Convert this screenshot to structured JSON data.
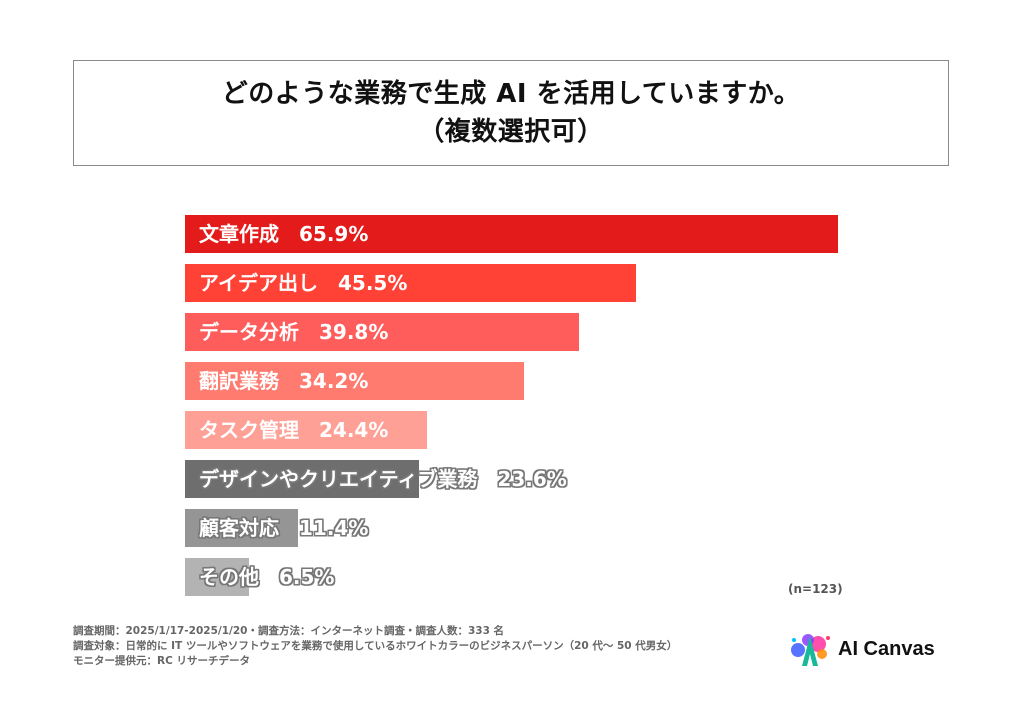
{
  "title": {
    "line1": "どのような業務で生成 AI を活用していますか。",
    "line2": "（複数選択可）"
  },
  "chart_data": {
    "type": "bar",
    "orientation": "horizontal",
    "title": "どのような業務で生成 AI を活用していますか。（複数選択可）",
    "xlabel": "",
    "ylabel": "",
    "unit": "%",
    "xlim": [
      0,
      65.9
    ],
    "grid": false,
    "categories": [
      "文章作成",
      "アイデア出し",
      "データ分析",
      "翻訳業務",
      "タスク管理",
      "デザインやクリエイティブ業務",
      "顧客対応",
      "その他"
    ],
    "values": [
      65.9,
      45.5,
      39.8,
      34.2,
      24.4,
      23.6,
      11.4,
      6.5
    ],
    "value_labels": [
      "65.9%",
      "45.5%",
      "39.8%",
      "34.2%",
      "24.4%",
      "23.6%",
      "11.4%",
      "6.5%"
    ],
    "colors": [
      "#e31b1b",
      "#ff4136",
      "#ff5c5c",
      "#ff7b70",
      "#ffa097",
      "#6e6e6e",
      "#959595",
      "#b3b3b3"
    ],
    "sample_note": "(n=123)"
  },
  "footer": {
    "line1": "調査期間：2025/1/17-2025/1/20・調査方法：インターネット調査・調査人数：333 名",
    "line2": "調査対象：日常的に IT ツールやソフトウェアを業務で使用しているホワイトカラーのビジネスパーソン（20 代～ 50 代男女）",
    "line3": "モニター提供元：RC リサーチデータ"
  },
  "logo": {
    "text": "AI Canvas",
    "icon": "paint-splash-a-icon"
  }
}
